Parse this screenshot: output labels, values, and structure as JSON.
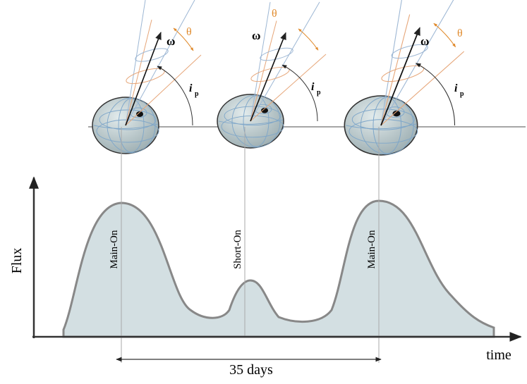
{
  "panels": [
    {
      "omega": "ω",
      "theta": "θ",
      "inclination": "i",
      "inclination_subscript": "p"
    },
    {
      "omega": "ω",
      "theta": "θ",
      "inclination": "i",
      "inclination_subscript": "p"
    },
    {
      "omega": "ω",
      "theta": "θ",
      "inclination": "i",
      "inclination_subscript": "p"
    }
  ],
  "y_axis_label": "Flux",
  "x_axis_label": "time",
  "phases": [
    "Main-On",
    "Short-On",
    "Main-On"
  ],
  "period_label": "35 days"
}
